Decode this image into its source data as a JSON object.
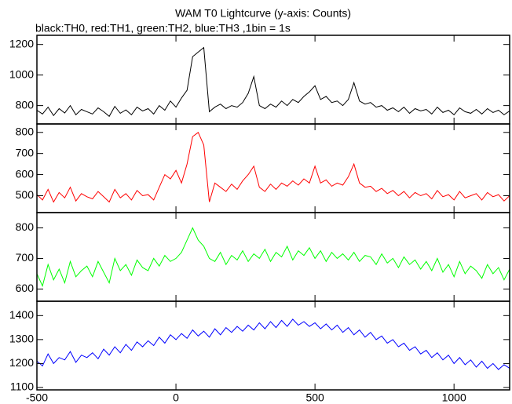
{
  "chart_data": {
    "type": "line",
    "title": "WAM T0 Lightcurve (y-axis: Counts)",
    "subtitle": "black:TH0, red:TH1, green:TH2, blue:TH3 ,1bin = 1s",
    "xlim": [
      -500,
      1200
    ],
    "xticks": [
      -500,
      0,
      500,
      1000
    ],
    "x": [
      -500,
      -480,
      -460,
      -440,
      -420,
      -400,
      -380,
      -360,
      -340,
      -320,
      -300,
      -280,
      -260,
      -240,
      -220,
      -200,
      -180,
      -160,
      -140,
      -120,
      -100,
      -80,
      -60,
      -40,
      -20,
      0,
      20,
      40,
      60,
      80,
      100,
      120,
      140,
      160,
      180,
      200,
      220,
      240,
      260,
      280,
      300,
      320,
      340,
      360,
      380,
      400,
      420,
      440,
      460,
      480,
      500,
      520,
      540,
      560,
      580,
      600,
      620,
      640,
      660,
      680,
      700,
      720,
      740,
      760,
      780,
      800,
      820,
      840,
      860,
      880,
      900,
      920,
      940,
      960,
      980,
      1000,
      1020,
      1040,
      1060,
      1080,
      1100,
      1120,
      1140,
      1160,
      1180,
      1200
    ],
    "series": [
      {
        "color": "#000000",
        "ylim": [
          680,
          1260
        ],
        "yticks": [
          800,
          1000,
          1200
        ],
        "values": [
          770,
          745,
          790,
          735,
          780,
          752,
          800,
          740,
          775,
          760,
          745,
          785,
          760,
          730,
          795,
          750,
          772,
          740,
          790,
          765,
          780,
          745,
          800,
          770,
          830,
          790,
          850,
          900,
          1120,
          1150,
          1180,
          760,
          790,
          810,
          780,
          800,
          790,
          820,
          880,
          990,
          800,
          780,
          810,
          790,
          830,
          800,
          840,
          820,
          860,
          890,
          930,
          840,
          860,
          820,
          830,
          800,
          840,
          950,
          830,
          810,
          820,
          790,
          800,
          770,
          785,
          760,
          790,
          750,
          780,
          765,
          775,
          745,
          790,
          755,
          770,
          740,
          785,
          760,
          750,
          775,
          745,
          780,
          755,
          770,
          740,
          765
        ]
      },
      {
        "color": "#ff0000",
        "ylim": [
          420,
          840
        ],
        "yticks": [
          500,
          600,
          700,
          800
        ],
        "values": [
          505,
          480,
          530,
          470,
          515,
          490,
          540,
          475,
          510,
          495,
          485,
          520,
          495,
          470,
          530,
          490,
          510,
          480,
          525,
          500,
          505,
          480,
          540,
          600,
          580,
          620,
          560,
          650,
          780,
          800,
          740,
          470,
          560,
          540,
          520,
          555,
          530,
          570,
          600,
          640,
          540,
          520,
          555,
          530,
          560,
          545,
          570,
          550,
          580,
          560,
          640,
          560,
          575,
          545,
          560,
          550,
          590,
          650,
          560,
          540,
          545,
          520,
          535,
          510,
          525,
          500,
          520,
          490,
          515,
          500,
          510,
          485,
          525,
          495,
          505,
          480,
          520,
          490,
          500,
          510,
          480,
          515,
          495,
          505,
          475,
          500
        ]
      },
      {
        "color": "#00ff00",
        "ylim": [
          560,
          850
        ],
        "yticks": [
          600,
          700,
          800
        ],
        "values": [
          650,
          610,
          680,
          630,
          665,
          620,
          690,
          640,
          660,
          675,
          640,
          690,
          655,
          620,
          700,
          660,
          680,
          645,
          695,
          670,
          660,
          700,
          675,
          710,
          690,
          700,
          720,
          760,
          800,
          760,
          740,
          700,
          690,
          720,
          680,
          710,
          695,
          725,
          690,
          715,
          700,
          730,
          690,
          720,
          705,
          740,
          695,
          725,
          710,
          735,
          700,
          725,
          690,
          720,
          700,
          715,
          695,
          720,
          690,
          710,
          705,
          680,
          715,
          685,
          700,
          670,
          705,
          680,
          695,
          665,
          690,
          660,
          700,
          655,
          680,
          640,
          690,
          650,
          675,
          660,
          635,
          680,
          650,
          670,
          630,
          665
        ]
      },
      {
        "color": "#0000ff",
        "ylim": [
          1090,
          1460
        ],
        "yticks": [
          1100,
          1200,
          1300,
          1400
        ],
        "values": [
          1210,
          1190,
          1240,
          1200,
          1225,
          1215,
          1250,
          1205,
          1235,
          1225,
          1245,
          1220,
          1260,
          1235,
          1270,
          1245,
          1280,
          1255,
          1290,
          1270,
          1295,
          1275,
          1310,
          1285,
          1320,
          1300,
          1325,
          1305,
          1340,
          1315,
          1335,
          1310,
          1345,
          1320,
          1350,
          1330,
          1355,
          1335,
          1360,
          1340,
          1370,
          1345,
          1375,
          1350,
          1380,
          1355,
          1385,
          1360,
          1375,
          1355,
          1370,
          1345,
          1365,
          1340,
          1360,
          1330,
          1350,
          1320,
          1340,
          1310,
          1330,
          1300,
          1315,
          1285,
          1300,
          1270,
          1285,
          1255,
          1270,
          1240,
          1255,
          1225,
          1245,
          1215,
          1235,
          1200,
          1225,
          1195,
          1215,
          1185,
          1210,
          1180,
          1200,
          1175,
          1195,
          1180
        ]
      }
    ]
  }
}
